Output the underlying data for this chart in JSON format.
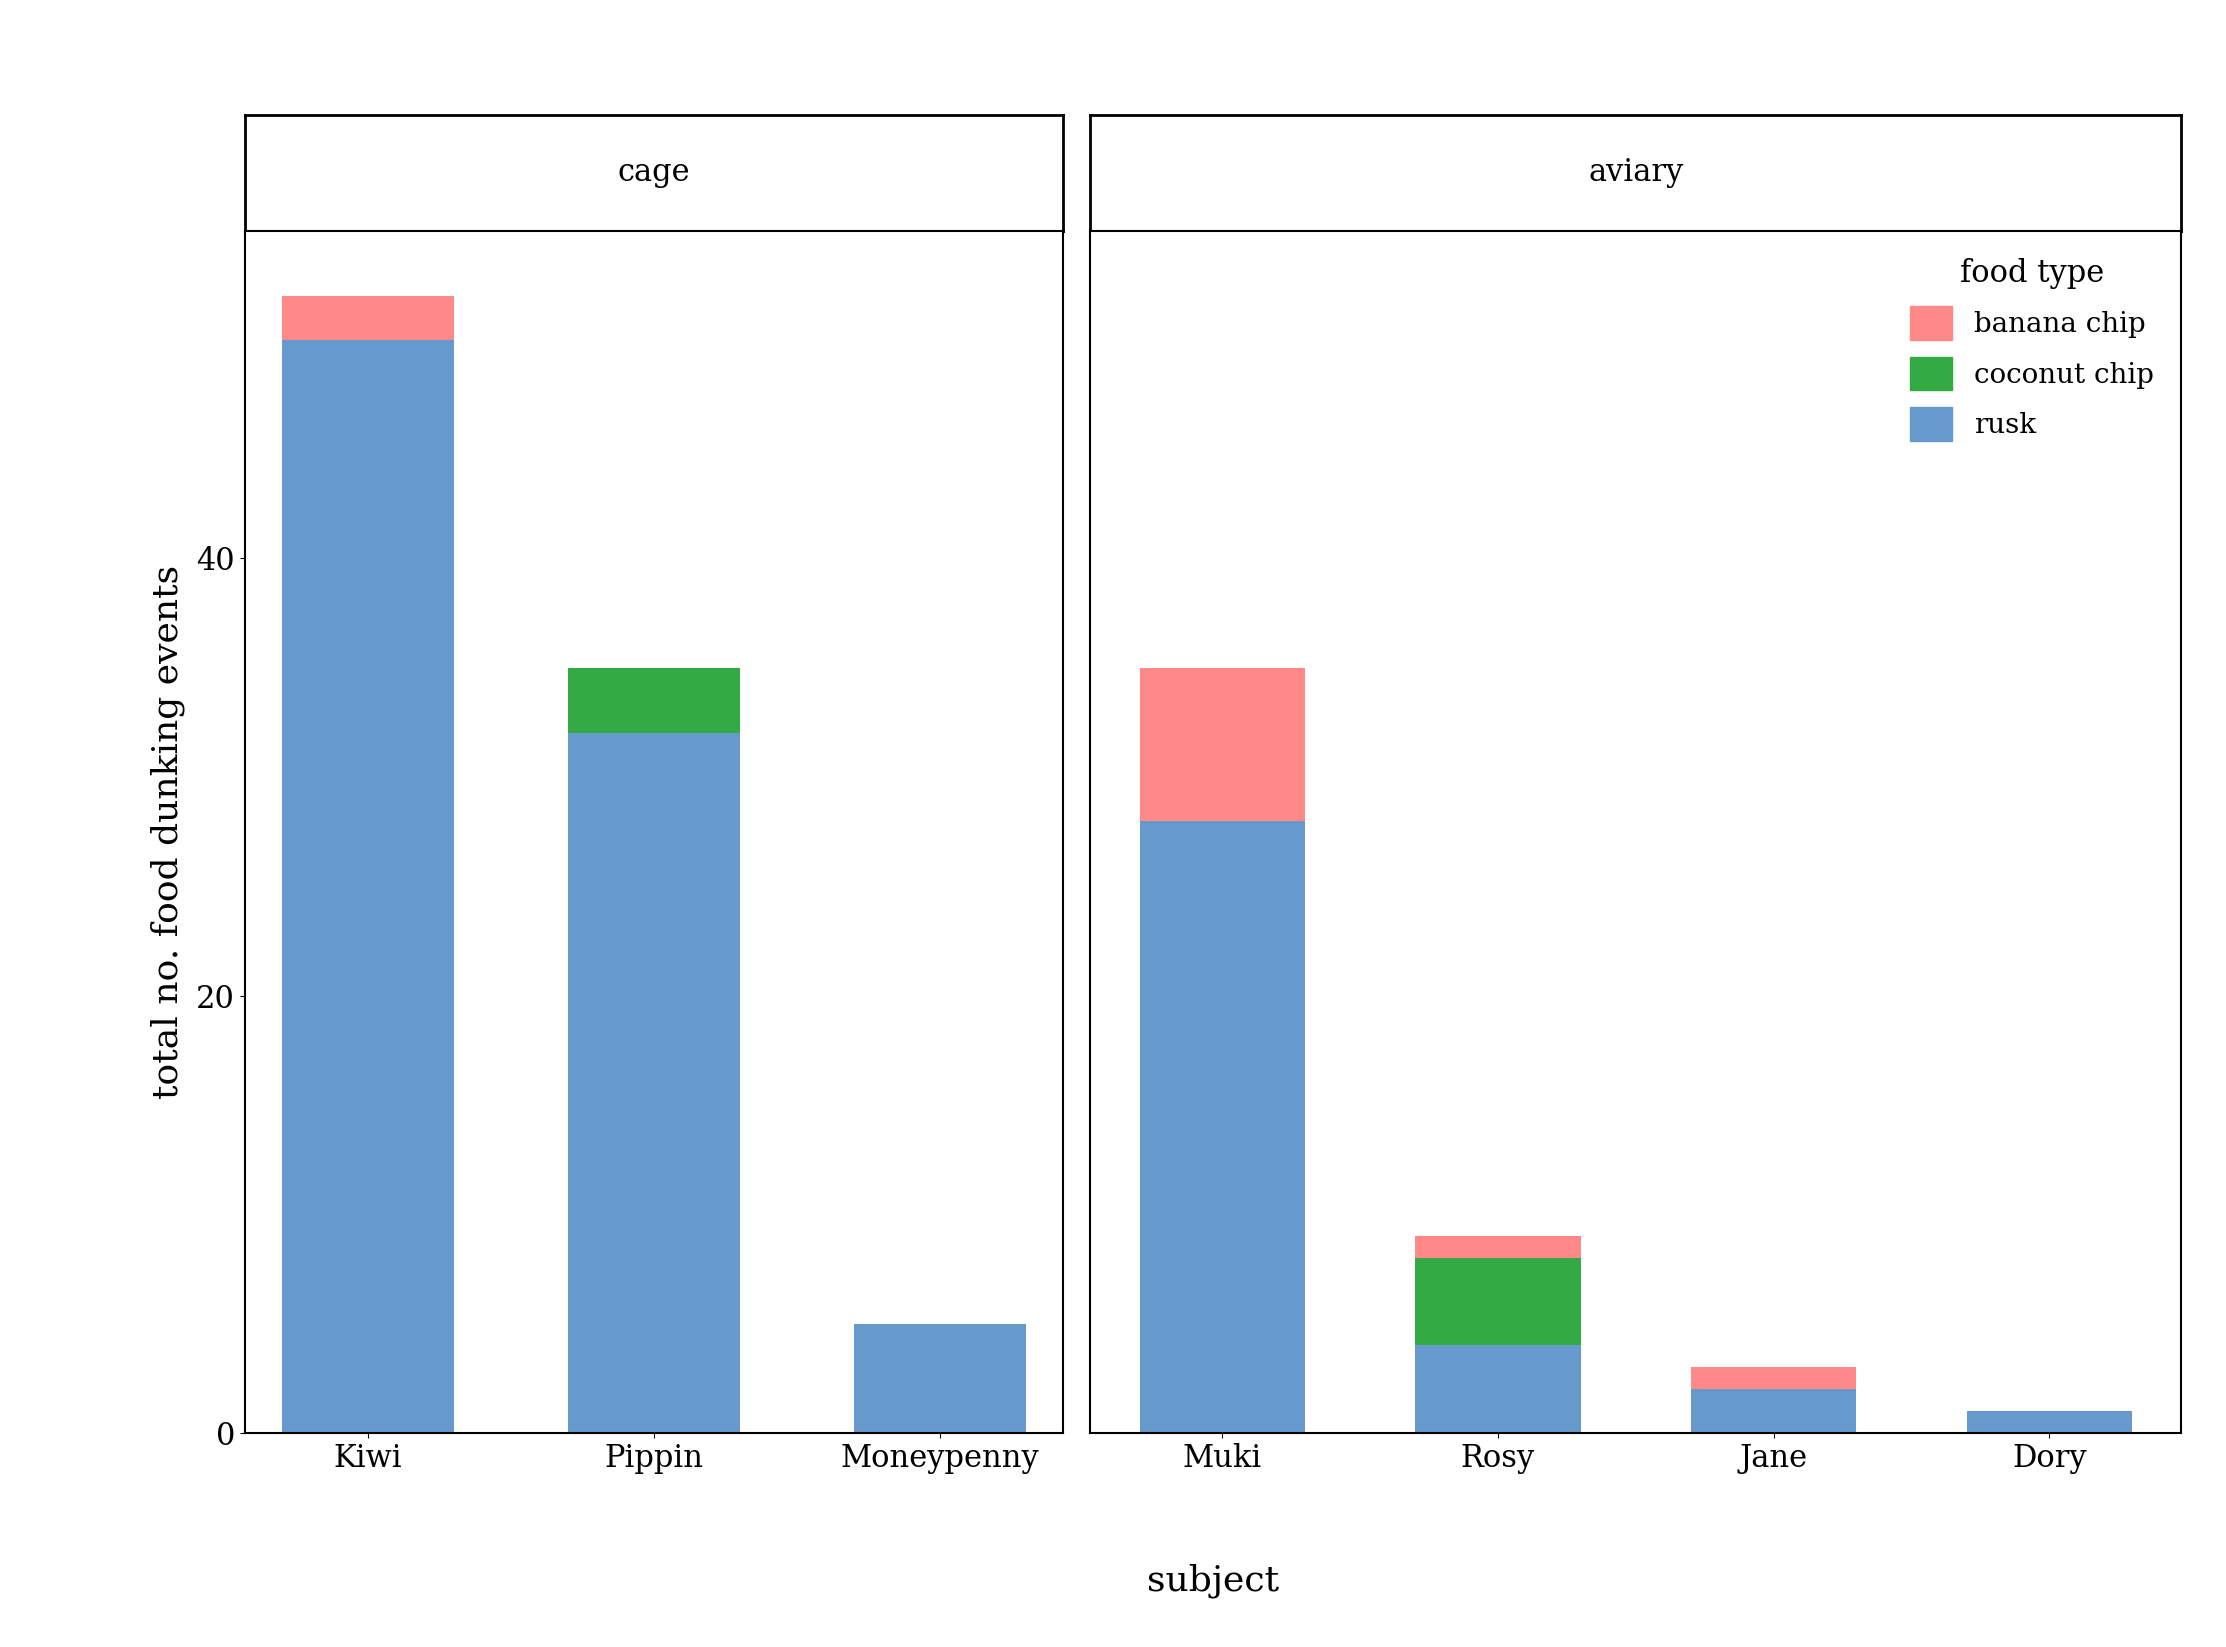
{
  "subjects_cage": [
    "Kiwi",
    "Pippin",
    "Moneypenny"
  ],
  "subjects_aviary": [
    "Muki",
    "Rosy",
    "Jane",
    "Dory"
  ],
  "cage_data": {
    "Kiwi": {
      "rusk": 50,
      "coconut_chip": 0,
      "banana_chip": 2
    },
    "Pippin": {
      "rusk": 32,
      "coconut_chip": 3,
      "banana_chip": 0
    },
    "Moneypenny": {
      "rusk": 5,
      "coconut_chip": 0,
      "banana_chip": 0
    }
  },
  "aviary_data": {
    "Muki": {
      "rusk": 28,
      "coconut_chip": 0,
      "banana_chip": 7
    },
    "Rosy": {
      "rusk": 4,
      "coconut_chip": 4,
      "banana_chip": 1
    },
    "Jane": {
      "rusk": 2,
      "coconut_chip": 0,
      "banana_chip": 1
    },
    "Dory": {
      "rusk": 1,
      "coconut_chip": 0,
      "banana_chip": 0
    }
  },
  "colors": {
    "rusk": "#6699CC",
    "coconut_chip": "#33AA44",
    "banana_chip": "#FF8888"
  },
  "legend_labels": [
    "banana chip",
    "coconut chip",
    "rusk"
  ],
  "ylabel": "total no. food dunking events",
  "xlabel": "subject",
  "ylim": [
    0,
    55
  ],
  "yticks": [
    0,
    20,
    40
  ],
  "panel_labels": [
    "cage",
    "aviary"
  ],
  "background_color": "#ffffff",
  "strip_bg": "#ffffff",
  "bar_width": 0.6,
  "fontsize_axis_label": 26,
  "fontsize_tick": 22,
  "fontsize_panel": 22,
  "fontsize_legend_title": 22,
  "fontsize_legend": 20
}
